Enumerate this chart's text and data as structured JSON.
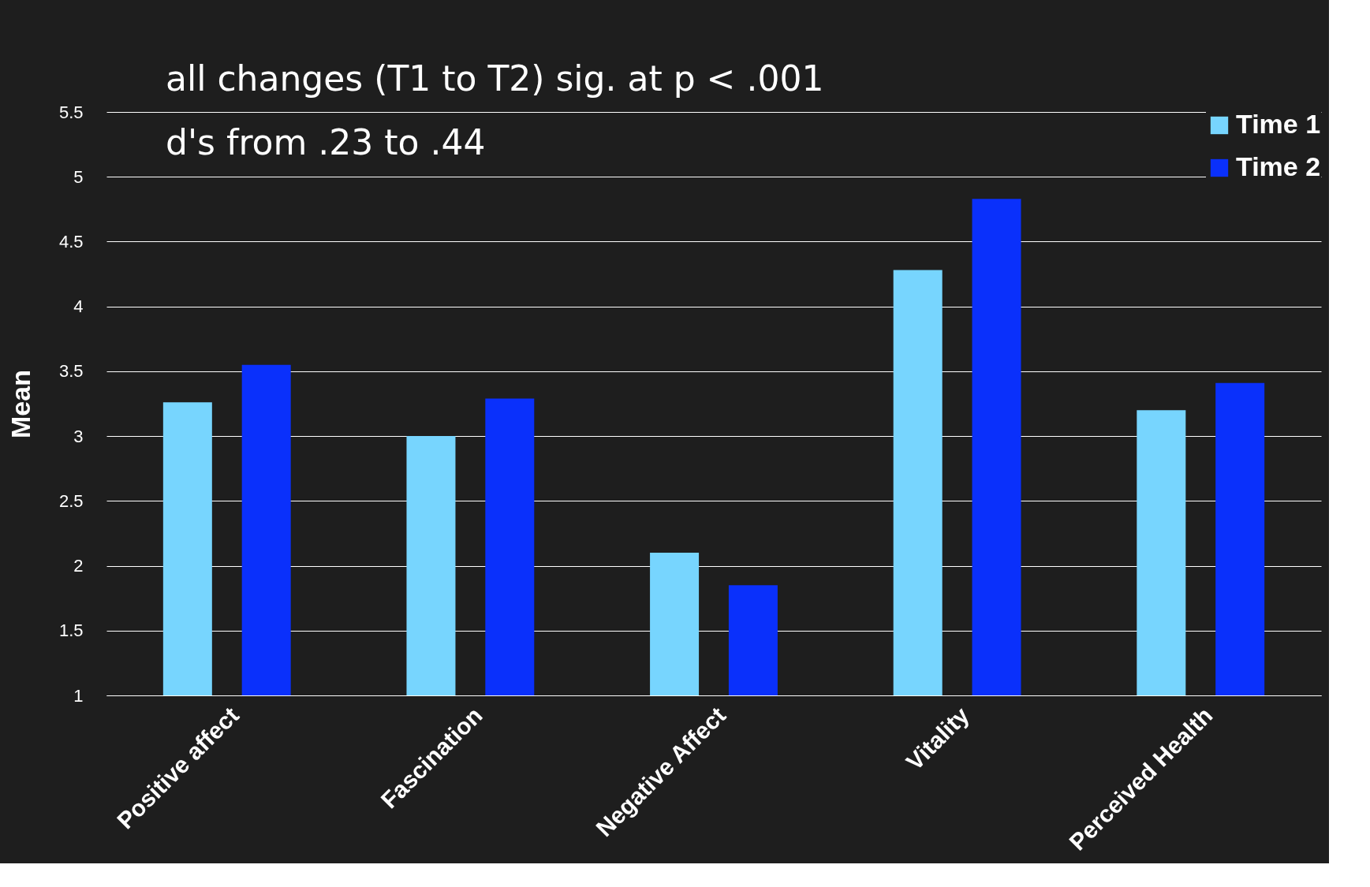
{
  "chart_data": {
    "type": "bar",
    "ylabel": "Mean",
    "categories": [
      "Positive affect",
      "Fascination",
      "Negative Affect",
      "Vitality",
      "Perceived Health"
    ],
    "series": [
      {
        "name": "Time 1",
        "color": "#77d5fe",
        "values": [
          3.26,
          3.0,
          2.1,
          4.28,
          3.2
        ]
      },
      {
        "name": "Time 2",
        "color": "#0a30fb",
        "values": [
          3.55,
          3.29,
          1.85,
          4.83,
          3.41
        ]
      }
    ],
    "ylim": [
      1,
      5.5
    ],
    "yticks": [
      1,
      1.5,
      2,
      2.5,
      3,
      3.5,
      4,
      4.5,
      5,
      5.5
    ],
    "grid": "y",
    "legend": "top right",
    "annotations": [
      "all changes (T1 to T2) sig. at p < .001",
      "d's from  .23 to .44"
    ]
  }
}
